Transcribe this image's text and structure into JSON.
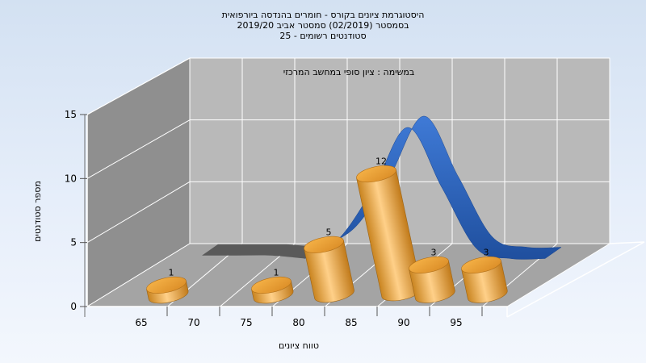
{
  "chart_data": {
    "type": "bar",
    "title_lines": [
      "היסטוגרמת ציונים בקורס - חומרים בהנדסה ביורפואית",
      "בסמסטר  (02/2019)  סמסטר אביב 2019/20",
      "סטודנטים רשומים - 25"
    ],
    "subtitle": "במשימה : ציון סופי במחשב המרכזי",
    "xlabel": "טווח ציונים",
    "ylabel": "מספר סטודנטים",
    "x_ticks": [
      "65",
      "70",
      "75",
      "80",
      "85",
      "90",
      "95"
    ],
    "y_ticks": [
      0,
      5,
      10,
      15
    ],
    "ylim": [
      0,
      15
    ],
    "bars": [
      {
        "label": "1",
        "value": 1,
        "slot": 0
      },
      {
        "label": "1",
        "value": 1,
        "slot": 2
      },
      {
        "label": "5",
        "value": 5,
        "slot": 3
      },
      {
        "label": "12",
        "value": 12,
        "slot": 4
      },
      {
        "label": "3",
        "value": 3,
        "slot": 5
      },
      {
        "label": "3",
        "value": 3,
        "slot": 6
      }
    ],
    "curve_values": [
      1.3,
      1.3,
      1.3,
      1.0,
      3.0,
      8.0,
      14.0,
      8.0,
      2.0,
      1.0,
      1.0
    ],
    "colors": {
      "bar": "#f0a73a",
      "curve": "#2e66bd",
      "curve_shadow": "#5a5a5a",
      "back_wall": "#b9b9b9",
      "side_wall": "#8f8f8f",
      "floor": "#a4a4a4"
    },
    "grid": true
  }
}
